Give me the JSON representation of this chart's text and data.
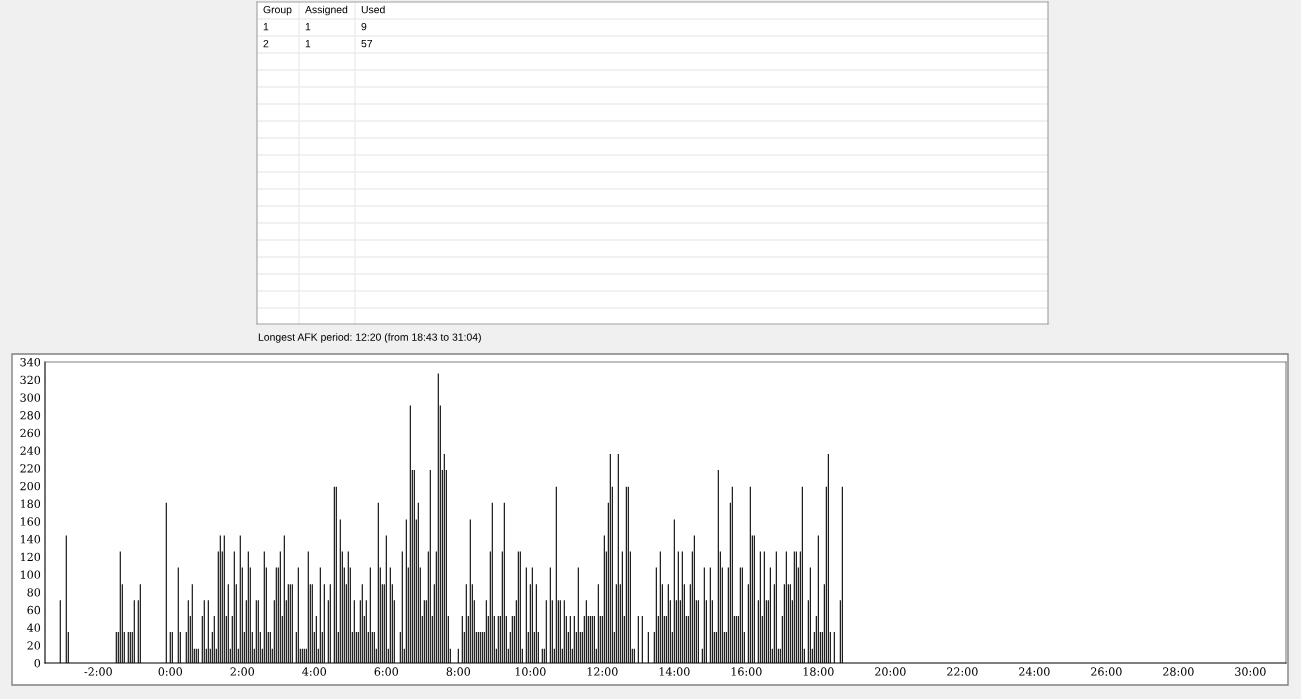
{
  "chart_data": [
    {
      "type": "other",
      "categories": [
        "Group",
        "Assigned",
        "Used"
      ],
      "cell_labels": [
        [
          "1",
          "1",
          "9"
        ],
        [
          "2",
          "1",
          "57"
        ]
      ]
    },
    {
      "type": "bar",
      "annotations": [
        "Longest AFK period: 12:20 (from 18:43 to 31:04)"
      ],
      "xlim": [
        -3.48,
        30.99
      ],
      "ylim": [
        0,
        340
      ],
      "xticks": [
        {
          "value": -2,
          "label": "-2:00"
        },
        {
          "value": 0,
          "label": "0:00"
        },
        {
          "value": 2,
          "label": "2:00"
        },
        {
          "value": 4,
          "label": "4:00"
        },
        {
          "value": 6,
          "label": "6:00"
        },
        {
          "value": 8,
          "label": "8:00"
        },
        {
          "value": 10,
          "label": "10:00"
        },
        {
          "value": 12,
          "label": "12:00"
        },
        {
          "value": 14,
          "label": "14:00"
        },
        {
          "value": 16,
          "label": "16:00"
        },
        {
          "value": 18,
          "label": "18:00"
        },
        {
          "value": 20,
          "label": "20:00"
        },
        {
          "value": 22,
          "label": "22:00"
        },
        {
          "value": 24,
          "label": "24:00"
        },
        {
          "value": 26,
          "label": "26:00"
        },
        {
          "value": 28,
          "label": "28:00"
        },
        {
          "value": 30,
          "label": "30:00"
        }
      ],
      "yticks": [
        0,
        20,
        40,
        60,
        80,
        100,
        120,
        140,
        160,
        180,
        200,
        220,
        240,
        260,
        280,
        300,
        320,
        340
      ],
      "grid": false,
      "series": [
        {
          "color": "#000000",
          "x": [
            -3.056,
            -2.889,
            -2.833,
            -1.5,
            -1.444,
            -1.389,
            -1.333,
            -1.278,
            -1.167,
            -1.111,
            -1.056,
            -1,
            -0.889,
            -0.833,
            -0.111,
            0,
            0.056,
            0.222,
            0.278,
            0.444,
            0.5,
            0.556,
            0.611,
            0.667,
            0.722,
            0.778,
            0.889,
            0.944,
            1,
            1.056,
            1.111,
            1.167,
            1.222,
            1.278,
            1.333,
            1.389,
            1.444,
            1.5,
            1.556,
            1.611,
            1.667,
            1.722,
            1.778,
            1.833,
            1.889,
            1.944,
            2,
            2.056,
            2.111,
            2.167,
            2.222,
            2.278,
            2.333,
            2.389,
            2.444,
            2.5,
            2.556,
            2.611,
            2.667,
            2.722,
            2.778,
            2.833,
            2.889,
            2.944,
            3,
            3.056,
            3.111,
            3.167,
            3.222,
            3.278,
            3.333,
            3.389,
            3.5,
            3.556,
            3.611,
            3.667,
            3.722,
            3.778,
            3.833,
            3.889,
            3.944,
            4,
            4.056,
            4.111,
            4.167,
            4.222,
            4.278,
            4.389,
            4.444,
            4.556,
            4.611,
            4.667,
            4.722,
            4.778,
            4.833,
            4.889,
            4.944,
            5,
            5.056,
            5.111,
            5.167,
            5.222,
            5.278,
            5.333,
            5.389,
            5.444,
            5.5,
            5.556,
            5.611,
            5.667,
            5.722,
            5.778,
            5.833,
            5.889,
            5.944,
            6,
            6.056,
            6.111,
            6.167,
            6.222,
            6.389,
            6.444,
            6.5,
            6.556,
            6.611,
            6.667,
            6.722,
            6.778,
            6.833,
            6.889,
            6.944,
            7,
            7.056,
            7.111,
            7.167,
            7.222,
            7.278,
            7.333,
            7.389,
            7.444,
            7.5,
            7.556,
            7.611,
            7.667,
            7.722,
            7.778,
            8,
            8.111,
            8.167,
            8.222,
            8.278,
            8.333,
            8.389,
            8.444,
            8.5,
            8.556,
            8.611,
            8.667,
            8.722,
            8.778,
            8.833,
            8.889,
            8.944,
            9,
            9.056,
            9.111,
            9.167,
            9.222,
            9.278,
            9.333,
            9.389,
            9.444,
            9.5,
            9.556,
            9.611,
            9.667,
            9.722,
            9.778,
            9.889,
            9.944,
            10,
            10.056,
            10.111,
            10.167,
            10.222,
            10.333,
            10.389,
            10.444,
            10.556,
            10.611,
            10.667,
            10.722,
            10.778,
            10.833,
            10.889,
            10.944,
            11,
            11.056,
            11.111,
            11.167,
            11.222,
            11.278,
            11.333,
            11.389,
            11.444,
            11.5,
            11.556,
            11.611,
            11.667,
            11.722,
            11.778,
            11.833,
            11.889,
            11.944,
            12,
            12.056,
            12.111,
            12.167,
            12.222,
            12.278,
            12.333,
            12.389,
            12.444,
            12.5,
            12.556,
            12.611,
            12.667,
            12.722,
            12.778,
            12.833,
            12.889,
            13,
            13.111,
            13.278,
            13.444,
            13.5,
            13.556,
            13.611,
            13.667,
            13.722,
            13.778,
            13.833,
            13.889,
            13.944,
            14,
            14.056,
            14.111,
            14.167,
            14.222,
            14.278,
            14.333,
            14.389,
            14.444,
            14.5,
            14.556,
            14.611,
            14.667,
            14.778,
            14.833,
            14.889,
            15,
            15.056,
            15.111,
            15.167,
            15.222,
            15.278,
            15.333,
            15.389,
            15.444,
            15.5,
            15.556,
            15.611,
            15.667,
            15.722,
            15.778,
            15.833,
            15.889,
            15.944,
            16.056,
            16.111,
            16.167,
            16.222,
            16.333,
            16.389,
            16.444,
            16.5,
            16.556,
            16.611,
            16.667,
            16.722,
            16.778,
            16.833,
            16.889,
            16.944,
            17,
            17.056,
            17.111,
            17.167,
            17.222,
            17.278,
            17.333,
            17.389,
            17.444,
            17.5,
            17.556,
            17.611,
            17.722,
            17.778,
            17.833,
            17.889,
            17.944,
            18,
            18.056,
            18.111,
            18.167,
            18.222,
            18.278,
            18.333,
            18.444,
            18.611,
            18.667
          ],
          "values": [
            71,
            144,
            35,
            35,
            35,
            126,
            89,
            35,
            35,
            35,
            35,
            71,
            71,
            89,
            181,
            35,
            35,
            108,
            35,
            35,
            71,
            53,
            89,
            16,
            16,
            16,
            53,
            71,
            16,
            71,
            16,
            35,
            53,
            16,
            126,
            144,
            126,
            144,
            53,
            89,
            16,
            53,
            126,
            89,
            16,
            144,
            108,
            35,
            71,
            126,
            108,
            35,
            16,
            71,
            71,
            35,
            16,
            126,
            108,
            35,
            35,
            16,
            71,
            108,
            108,
            126,
            53,
            144,
            71,
            89,
            89,
            89,
            35,
            108,
            16,
            16,
            16,
            16,
            126,
            89,
            89,
            35,
            53,
            16,
            108,
            35,
            89,
            71,
            89,
            199,
            199,
            35,
            162,
            126,
            108,
            89,
            126,
            108,
            35,
            71,
            35,
            35,
            71,
            89,
            53,
            71,
            35,
            108,
            35,
            35,
            16,
            181,
            108,
            89,
            89,
            144,
            16,
            108,
            89,
            71,
            35,
            126,
            16,
            162,
            108,
            291,
            218,
            218,
            162,
            181,
            108,
            53,
            71,
            71,
            126,
            218,
            53,
            89,
            126,
            327,
            291,
            218,
            236,
            218,
            53,
            16,
            16,
            53,
            35,
            89,
            53,
            162,
            89,
            71,
            35,
            35,
            35,
            35,
            35,
            71,
            53,
            126,
            181,
            53,
            16,
            53,
            53,
            126,
            181,
            53,
            16,
            35,
            53,
            53,
            71,
            126,
            126,
            16,
            108,
            35,
            89,
            108,
            35,
            89,
            35,
            16,
            16,
            71,
            108,
            71,
            16,
            199,
            71,
            71,
            16,
            71,
            53,
            35,
            53,
            16,
            53,
            35,
            108,
            35,
            35,
            53,
            71,
            53,
            53,
            53,
            53,
            16,
            89,
            53,
            53,
            144,
            126,
            181,
            236,
            199,
            35,
            89,
            236,
            89,
            126,
            53,
            199,
            199,
            126,
            16,
            16,
            53,
            53,
            35,
            35,
            108,
            53,
            126,
            89,
            53,
            53,
            89,
            71,
            35,
            162,
            71,
            126,
            71,
            126,
            89,
            53,
            53,
            89,
            126,
            144,
            71,
            71,
            16,
            108,
            71,
            108,
            71,
            35,
            35,
            218,
            126,
            108,
            35,
            35,
            108,
            181,
            199,
            53,
            53,
            53,
            108,
            108,
            35,
            89,
            199,
            144,
            144,
            71,
            126,
            53,
            126,
            71,
            71,
            108,
            16,
            89,
            126,
            16,
            16,
            53,
            89,
            126,
            89,
            89,
            71,
            126,
            126,
            108,
            126,
            199,
            16,
            71,
            108,
            16,
            35,
            53,
            144,
            35,
            35,
            89,
            199,
            236,
            35,
            35,
            71,
            199
          ]
        }
      ]
    }
  ]
}
